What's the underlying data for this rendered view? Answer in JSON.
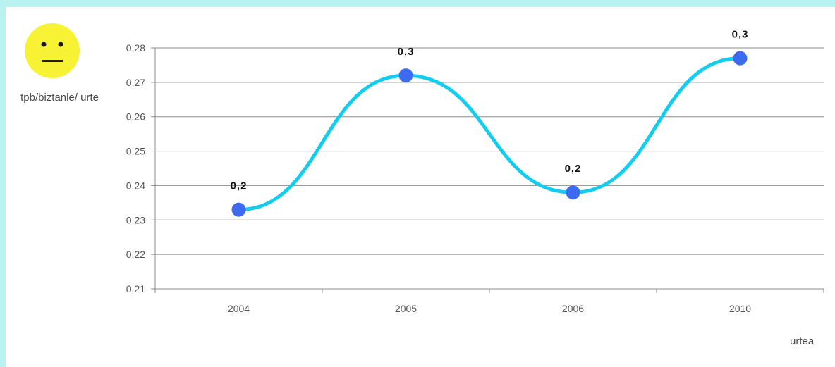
{
  "chart_data": {
    "type": "line",
    "title": "",
    "ylabel": "tpb/biztanle/ urte",
    "xlabel": "urtea",
    "categories": [
      "2004",
      "2005",
      "2006",
      "2010"
    ],
    "series": [
      {
        "values": [
          0.233,
          0.272,
          0.238,
          0.277
        ],
        "labels": [
          "0,2",
          "0,3",
          "0,2",
          "0,3"
        ]
      }
    ],
    "ylim": [
      0.21,
      0.28
    ],
    "yticks": [
      "0,21",
      "0,22",
      "0,23",
      "0,24",
      "0,25",
      "0,26",
      "0,27",
      "0,28"
    ],
    "grid": true,
    "colors": {
      "line": "#13cdf0",
      "marker": "#3d6bf0",
      "grid": "#8c8c8c",
      "background": "#b9f2f1"
    },
    "icon": "neutral-face-icon"
  }
}
